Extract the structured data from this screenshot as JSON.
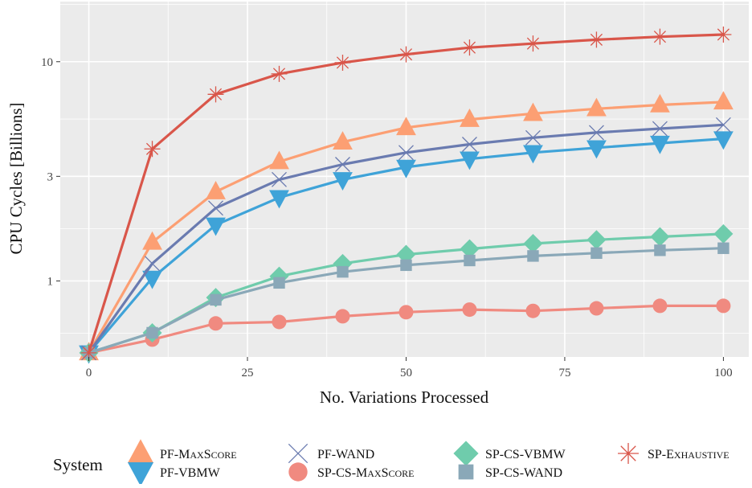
{
  "chart_data": {
    "type": "line",
    "xlabel": "No. Variations Processed",
    "ylabel": "CPU Cycles [Billions]",
    "xlim": [
      -4.5,
      104
    ],
    "ylim": [
      0.45,
      18.8
    ],
    "y_scale": "log",
    "x_ticks": [
      0,
      25,
      50,
      75,
      100
    ],
    "y_ticks": [
      1,
      3,
      10
    ],
    "grid": true,
    "legend_position": "bottom",
    "legend_title": "System",
    "x": [
      0,
      10,
      20,
      30,
      40,
      50,
      60,
      70,
      80,
      90,
      100
    ],
    "series": [
      {
        "name": "PF-MaxScore",
        "display": [
          "PF-M",
          "ax",
          "S",
          "core"
        ],
        "color": "#fc9f73",
        "marker": "triangle-up",
        "values": [
          0.47,
          1.5,
          2.55,
          3.5,
          4.3,
          5.0,
          5.45,
          5.8,
          6.1,
          6.35,
          6.55
        ]
      },
      {
        "name": "PF-VBMW",
        "display": [
          "PF-VBMW"
        ],
        "color": "#3fa3d8",
        "marker": "triangle-down",
        "values": [
          0.47,
          1.03,
          1.8,
          2.4,
          2.9,
          3.3,
          3.6,
          3.85,
          4.05,
          4.25,
          4.45
        ]
      },
      {
        "name": "PF-WAND",
        "display": [
          "PF-WAND"
        ],
        "color": "#6a7bb0",
        "marker": "x",
        "values": [
          0.47,
          1.2,
          2.15,
          2.9,
          3.4,
          3.85,
          4.2,
          4.5,
          4.75,
          4.95,
          5.15
        ]
      },
      {
        "name": "SP-CS-MaxScore",
        "display": [
          "SP-CS-M",
          "ax",
          "S",
          "core"
        ],
        "color": "#f08a80",
        "marker": "circle",
        "values": [
          0.47,
          0.54,
          0.64,
          0.65,
          0.69,
          0.72,
          0.74,
          0.73,
          0.75,
          0.77,
          0.77
        ]
      },
      {
        "name": "SP-CS-VBMW",
        "display": [
          "SP-CS-VBMW"
        ],
        "color": "#6fccac",
        "marker": "diamond",
        "values": [
          0.47,
          0.58,
          0.84,
          1.05,
          1.2,
          1.32,
          1.4,
          1.48,
          1.54,
          1.59,
          1.64
        ]
      },
      {
        "name": "SP-CS-WAND",
        "display": [
          "SP-CS-WAND"
        ],
        "color": "#8aa8b8",
        "marker": "square",
        "values": [
          0.47,
          0.58,
          0.82,
          0.98,
          1.1,
          1.18,
          1.24,
          1.3,
          1.34,
          1.38,
          1.41
        ]
      },
      {
        "name": "SP-Exhaustive",
        "display": [
          "SP-E",
          "xhaustive"
        ],
        "color": "#d9564a",
        "marker": "asterisk",
        "values": [
          0.47,
          4.0,
          7.1,
          8.8,
          9.9,
          10.8,
          11.6,
          12.1,
          12.6,
          13.0,
          13.3
        ]
      }
    ]
  }
}
